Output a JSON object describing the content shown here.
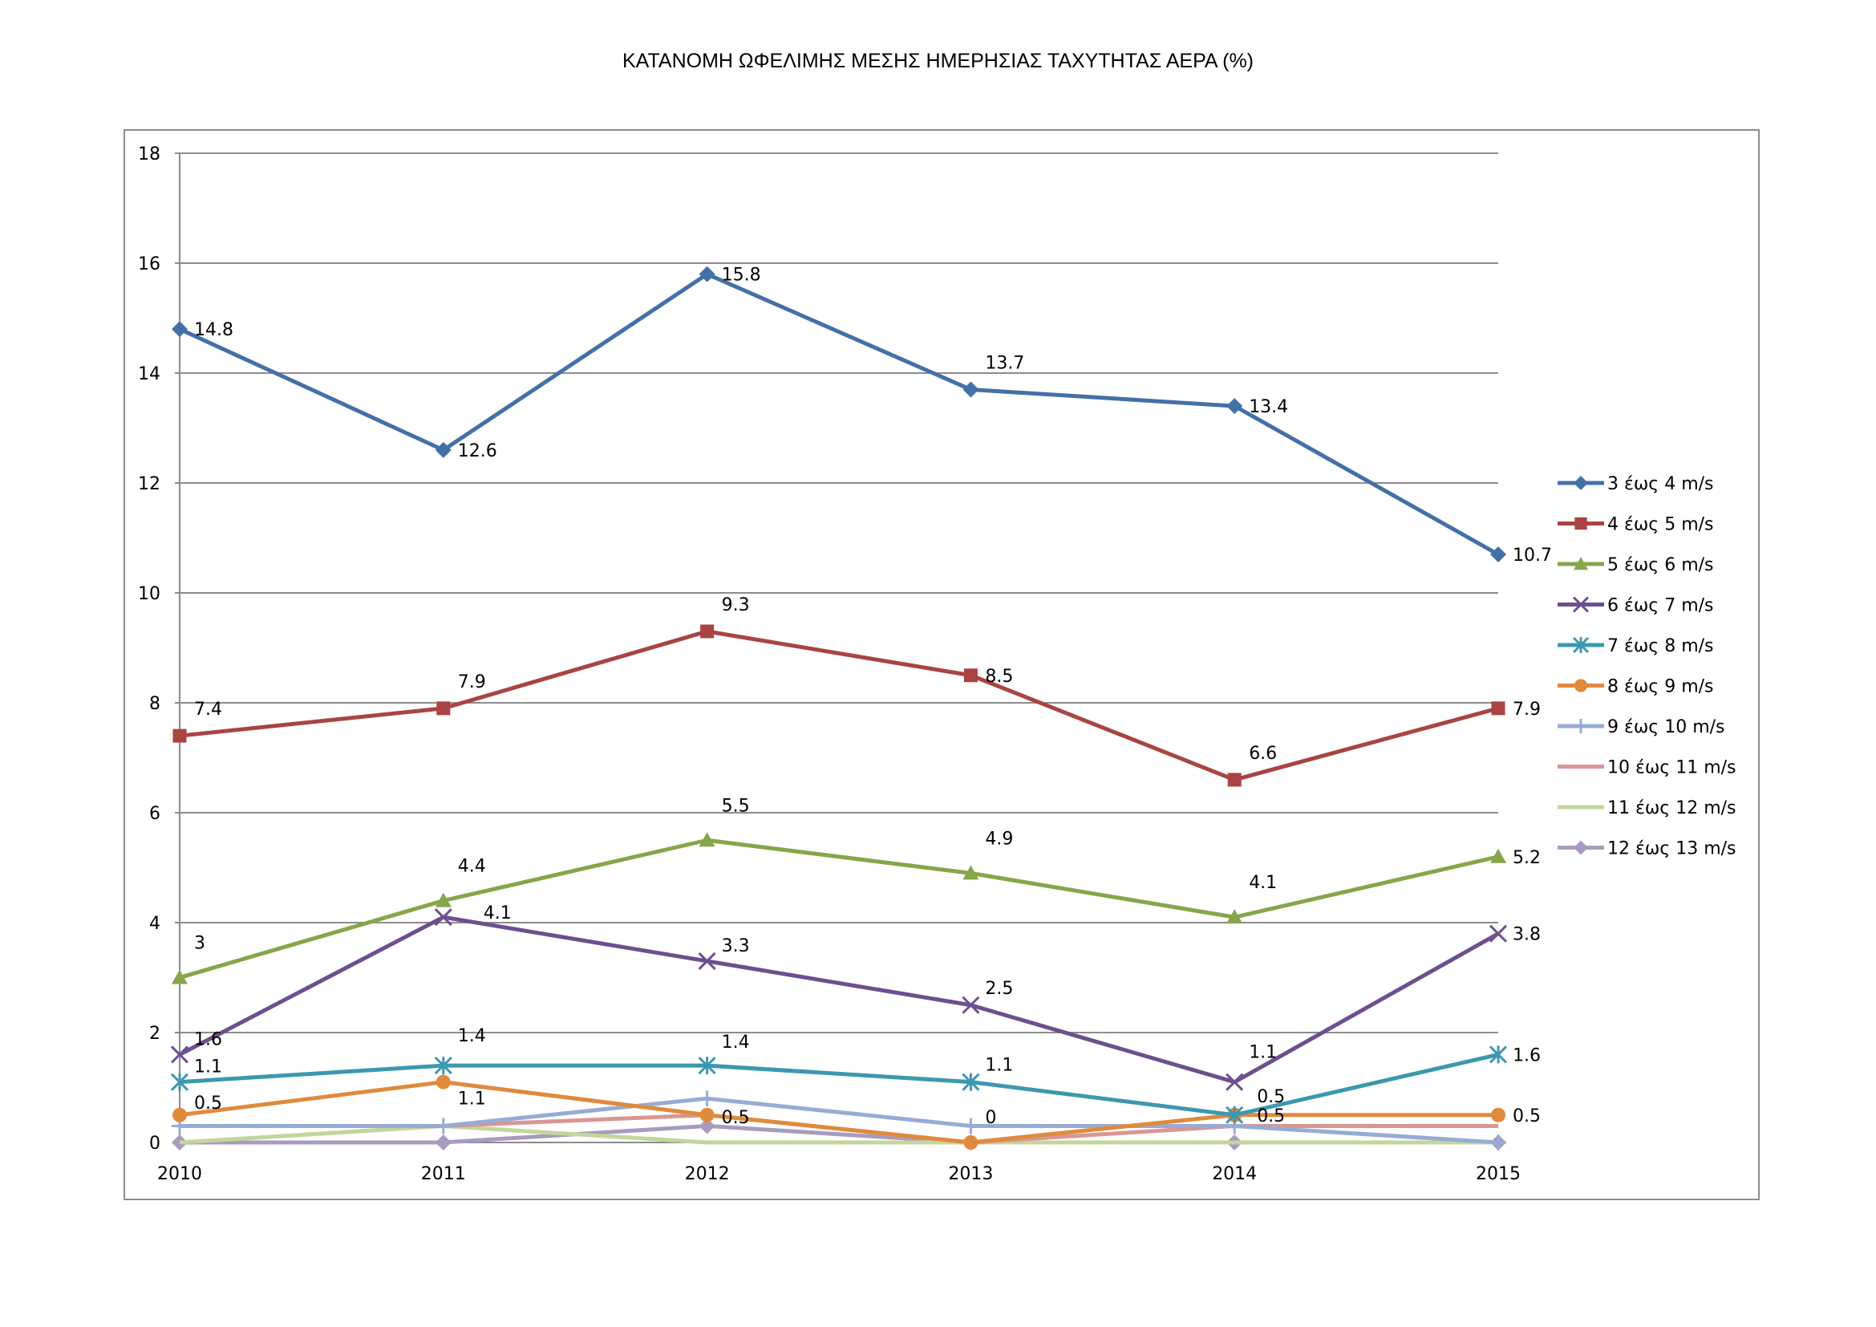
{
  "chart_data": {
    "type": "line",
    "title": "ΚΑΤΑΝΟΜΗ ΩΦΕΛΙΜΗΣ ΜΕΣΗΣ ΗΜΕΡΗΣΙΑΣ ΤΑΧΥΤΗΤΑΣ ΑΕΡΑ (%)",
    "xlabel": "",
    "ylabel": "",
    "categories": [
      "2010",
      "2011",
      "2012",
      "2013",
      "2014",
      "2015"
    ],
    "ylim": [
      0,
      18
    ],
    "yticks": [
      0,
      2,
      4,
      6,
      8,
      10,
      12,
      14,
      16,
      18
    ],
    "grid": true,
    "legend_position": "right",
    "series": [
      {
        "name": "3 έως 4 m/s",
        "color": "#4470a8",
        "marker": "diamond",
        "values": [
          14.8,
          12.6,
          15.8,
          13.7,
          13.4,
          10.7
        ],
        "data_labels": [
          "14.8",
          "12.6",
          "15.8",
          "13.7",
          "13.4",
          "10.7"
        ]
      },
      {
        "name": "4 έως 5 m/s",
        "color": "#a94442",
        "marker": "square",
        "values": [
          7.4,
          7.9,
          9.3,
          8.5,
          6.6,
          7.9
        ],
        "data_labels": [
          "7.4",
          "7.9",
          "9.3",
          "8.5",
          "6.6",
          "7.9"
        ]
      },
      {
        "name": "5 έως 6 m/s",
        "color": "#87a54a",
        "marker": "triangle",
        "values": [
          3,
          4.4,
          5.5,
          4.9,
          4.1,
          5.2
        ],
        "data_labels": [
          "3",
          "4.4",
          "5.5",
          "4.9",
          "4.1",
          "5.2"
        ]
      },
      {
        "name": "6 έως 7 m/s",
        "color": "#6d4f8f",
        "marker": "x",
        "values": [
          1.6,
          4.1,
          3.3,
          2.5,
          1.1,
          3.8
        ],
        "data_labels": [
          "1.6",
          "4.1",
          "3.3",
          "2.5",
          "1.1",
          "3.8"
        ]
      },
      {
        "name": "7 έως 8 m/s",
        "color": "#3d98ae",
        "marker": "star",
        "values": [
          1.1,
          1.4,
          1.4,
          1.1,
          0.5,
          1.6
        ],
        "data_labels": [
          "1.1",
          "1.4",
          "1.4",
          "1.1",
          "0.5",
          "1.6"
        ]
      },
      {
        "name": "8 έως 9 m/s",
        "color": "#e08a3c",
        "marker": "circle",
        "values": [
          0.5,
          1.1,
          0.5,
          0,
          0.5,
          0.5
        ],
        "data_labels": [
          "0.5",
          "1.1",
          "0.5",
          "0",
          "0.5",
          "0.5"
        ]
      },
      {
        "name": "9 έως 10 m/s",
        "color": "#97acd4",
        "marker": "plus",
        "values": [
          0.3,
          0.3,
          0.8,
          0.3,
          0.3,
          0
        ],
        "data_labels": []
      },
      {
        "name": "10 έως 11 m/s",
        "color": "#d99694",
        "marker": "none",
        "values": [
          0.3,
          0.3,
          0.5,
          0,
          0.3,
          0.3
        ],
        "data_labels": []
      },
      {
        "name": "11 έως 12 m/s",
        "color": "#c3d69b",
        "marker": "none",
        "values": [
          0,
          0.3,
          0,
          0,
          0,
          0
        ],
        "data_labels": []
      },
      {
        "name": "12 έως 13 m/s",
        "color": "#a99bbd",
        "marker": "diamond",
        "values": [
          0,
          0,
          0.3,
          0,
          0,
          0
        ],
        "data_labels": []
      }
    ]
  }
}
